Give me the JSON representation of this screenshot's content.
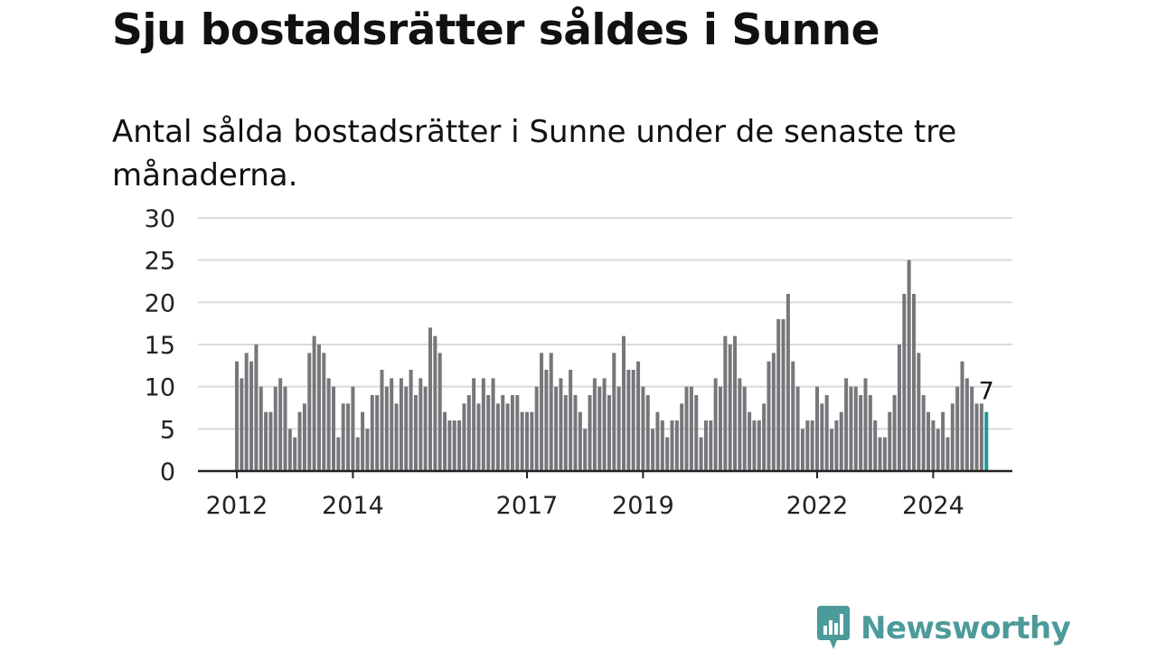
{
  "header": {
    "title": "Sju bostadsrätter såldes i Sunne",
    "subtitle": "Antal sålda bostadsrätter i Sunne under de senaste tre månaderna."
  },
  "brand": {
    "name": "Newsworthy",
    "logo_icon": "bar-chart-speech-bubble-icon",
    "color": "#4d9a9a"
  },
  "chart_data": {
    "type": "bar",
    "title": "",
    "xlabel": "",
    "ylabel": "",
    "ylim": [
      0,
      30
    ],
    "yticks": [
      "0",
      "5",
      "10",
      "15",
      "20",
      "25",
      "30"
    ],
    "xticks": [
      "2012",
      "2014",
      "2017",
      "2019",
      "2022",
      "2024"
    ],
    "x_start": "2012-01",
    "grid": true,
    "bar_color": "#77767b",
    "highlight_color": "#1a9a96",
    "highlight_label": "7",
    "series": [
      {
        "values": [
          13,
          11,
          14,
          13,
          15,
          10,
          7,
          7,
          10,
          11,
          10,
          5,
          4,
          7,
          8,
          14,
          16,
          15,
          14,
          11,
          10,
          4,
          8,
          8,
          10,
          4,
          7,
          5,
          9,
          9,
          12,
          10,
          11,
          8,
          11,
          10,
          12,
          9,
          11,
          10,
          17,
          16,
          14,
          7,
          6,
          6,
          6,
          8,
          9,
          11,
          8,
          11,
          9,
          11,
          8,
          9,
          8,
          9,
          9,
          7,
          7,
          7,
          10,
          14,
          12,
          14,
          10,
          11,
          9,
          12,
          9,
          7,
          5,
          9,
          11,
          10,
          11,
          9,
          14,
          10,
          16,
          12,
          12,
          13,
          10,
          9,
          5,
          7,
          6,
          4,
          6,
          6,
          8,
          10,
          10,
          9,
          4,
          6,
          6,
          11,
          10,
          16,
          15,
          16,
          11,
          10,
          7,
          6,
          6,
          8,
          13,
          14,
          18,
          18,
          21,
          13,
          10,
          5,
          6,
          6,
          10,
          8,
          9,
          5,
          6,
          7,
          11,
          10,
          10,
          9,
          11,
          9,
          6,
          4,
          4,
          7,
          9,
          15,
          21,
          25,
          21,
          14,
          9,
          7,
          6,
          5,
          7,
          4,
          8,
          10,
          13,
          11,
          10,
          8,
          8,
          7
        ]
      }
    ]
  }
}
